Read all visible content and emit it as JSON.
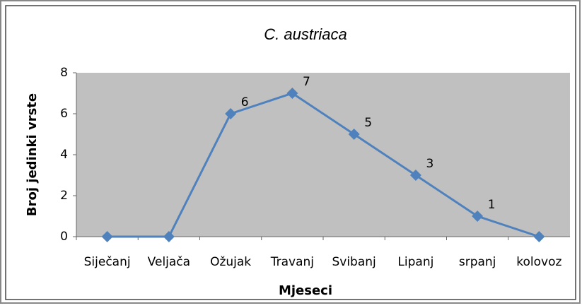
{
  "chart_data": {
    "type": "line",
    "title": "C. austriaca",
    "x_label": "Mjeseci",
    "y_label": "Broj jedinki vrste",
    "categories": [
      "Siječanj",
      "Veljača",
      "Ožujak",
      "Travanj",
      "Svibanj",
      "Lipanj",
      "srpanj",
      "kolovoz"
    ],
    "values": [
      0,
      0,
      6,
      7,
      5,
      3,
      1,
      0
    ],
    "value_labels": [
      null,
      null,
      "6",
      "7",
      "5",
      "3",
      "1",
      null
    ],
    "color": "#4f81bd",
    "ylim": [
      0,
      8
    ],
    "yticks": [
      0,
      2,
      4,
      6,
      8
    ],
    "grid": false
  }
}
